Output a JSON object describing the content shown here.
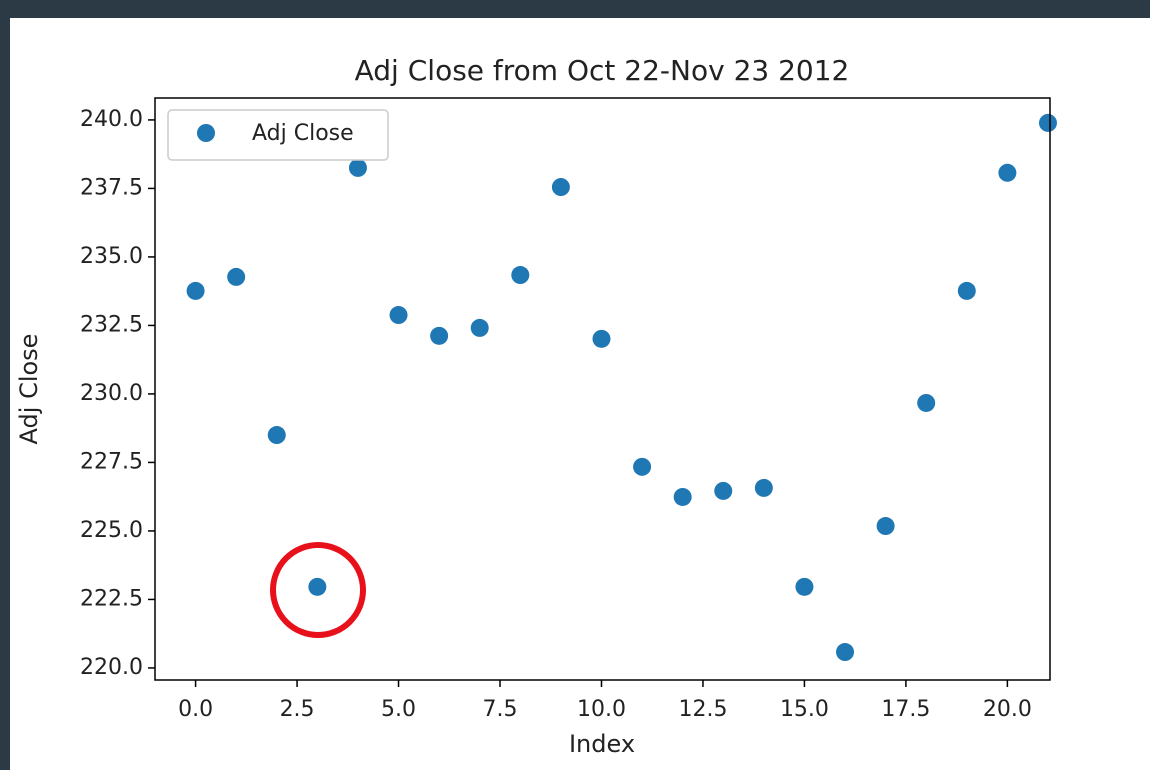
{
  "chart_data": {
    "type": "scatter",
    "title": "Adj Close from Oct 22-Nov 23 2012",
    "x_label": "Index",
    "y_label": "Adj Close",
    "x": [
      0,
      1,
      2,
      3,
      4,
      5,
      6,
      7,
      8,
      9,
      10,
      11,
      12,
      13,
      14,
      15,
      16,
      17,
      18,
      19,
      20,
      21
    ],
    "series": [
      {
        "name": "Adj Close",
        "color": "#1f77b4",
        "values": [
          233.76,
          234.27,
          228.5,
          222.96,
          238.25,
          232.88,
          232.12,
          232.41,
          234.34,
          237.55,
          232.01,
          227.34,
          226.24,
          226.46,
          226.57,
          222.96,
          220.58,
          225.18,
          229.67,
          233.76,
          238.07,
          239.89
        ]
      }
    ],
    "xlim": [
      -1.0,
      21.05
    ],
    "ylim": [
      219.56,
      240.8
    ],
    "xticks": [
      {
        "value": 0,
        "label": "0.0"
      },
      2.5,
      {
        "value": 5,
        "label": "5.0"
      },
      7.5,
      {
        "value": 10,
        "label": "10.0"
      },
      12.5,
      {
        "value": 15,
        "label": "15.0"
      },
      17.5,
      {
        "value": 20,
        "label": "20.0"
      }
    ],
    "yticks": [
      {
        "value": 220,
        "label": "220.0"
      },
      222.5,
      {
        "value": 225,
        "label": "225.0"
      },
      227.5,
      {
        "value": 230,
        "label": "230.0"
      },
      232.5,
      {
        "value": 235,
        "label": "235.0"
      },
      237.5,
      {
        "value": 240,
        "label": "240.0"
      }
    ],
    "legend": "upper left",
    "grid": false
  }
}
